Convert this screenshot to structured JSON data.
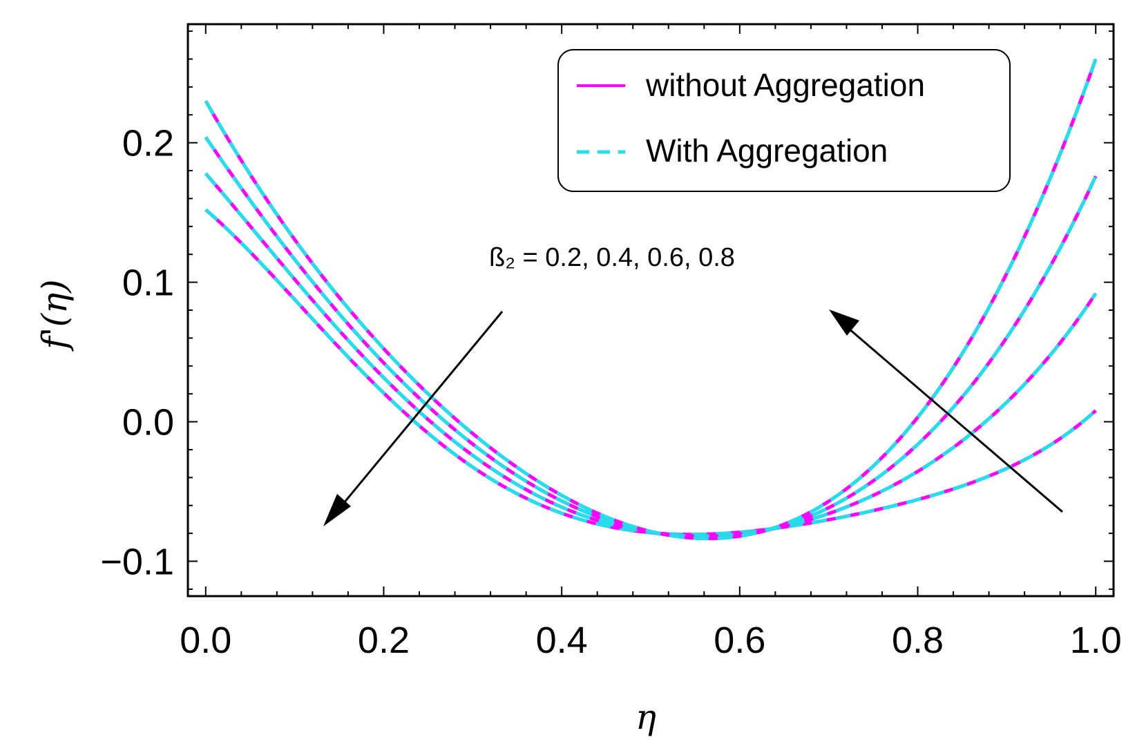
{
  "chart_data": {
    "type": "line",
    "xlabel": "η",
    "ylabel": "f'(η)",
    "xlim": [
      -0.02,
      1.02
    ],
    "ylim": [
      -0.125,
      0.285
    ],
    "xticks": [
      0.0,
      0.2,
      0.4,
      0.6,
      0.8,
      1.0
    ],
    "xtick_labels": [
      "0.0",
      "0.2",
      "0.4",
      "0.6",
      "0.8",
      "1.0"
    ],
    "yticks": [
      -0.1,
      0.0,
      0.1,
      0.2
    ],
    "ytick_labels": [
      "−0.1",
      "0.0",
      "0.1",
      "0.2"
    ],
    "annotation": "ß₂ = 0.2, 0.4, 0.6, 0.8",
    "legend": {
      "position": "top-right",
      "entries": [
        {
          "label": "without Aggregation",
          "color": "#ff00ff",
          "style": "solid"
        },
        {
          "label": "With Aggregation",
          "color": "#22e0ea",
          "style": "dashed"
        }
      ]
    },
    "series": [
      {
        "name": "ß₂ = 0.2",
        "x": [
          0.0,
          0.2,
          0.4,
          0.6,
          0.8,
          1.0
        ],
        "y": [
          0.152,
          0.0206,
          -0.0656,
          -0.0792,
          -0.0558,
          0.008
        ]
      },
      {
        "name": "ß₂ = 0.4",
        "x": [
          0.0,
          0.2,
          0.4,
          0.6,
          0.8,
          1.0
        ],
        "y": [
          0.178,
          0.0316,
          -0.0612,
          -0.0804,
          -0.0356,
          0.092
        ]
      },
      {
        "name": "ß₂ = 0.6",
        "x": [
          0.0,
          0.2,
          0.4,
          0.6,
          0.8,
          1.0
        ],
        "y": [
          0.204,
          0.0422,
          -0.0568,
          -0.0814,
          -0.0162,
          0.176
        ]
      },
      {
        "name": "ß₂ = 0.8",
        "x": [
          0.0,
          0.2,
          0.4,
          0.6,
          0.8,
          1.0
        ],
        "y": [
          0.23,
          0.0524,
          -0.0528,
          -0.082,
          0.0032,
          0.26
        ]
      }
    ],
    "colors": {
      "without_aggregation": "#ff00ff",
      "with_aggregation": "#22e0ea",
      "frame": "#000000",
      "arrows": "#000000"
    }
  }
}
